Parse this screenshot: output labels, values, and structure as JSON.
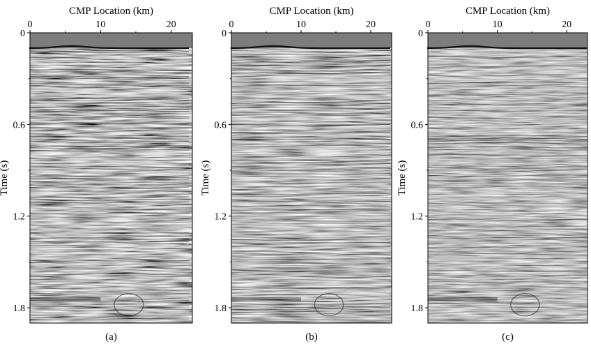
{
  "figure": {
    "panels": [
      {
        "id": "a",
        "caption": "(a)",
        "x_axis_title": "CMP Location (km)",
        "y_axis_title": "Time (s)",
        "x_ticks": [
          "0",
          "10",
          "20"
        ],
        "y_ticks": [
          "0",
          "0.6",
          "1.2",
          "1.8"
        ]
      },
      {
        "id": "b",
        "caption": "(b)",
        "x_axis_title": "CMP Location (km)",
        "y_axis_title": "Time (s)",
        "x_ticks": [
          "0",
          "10",
          "20"
        ],
        "y_ticks": [
          "0",
          "0.6",
          "1.2",
          "1.8"
        ]
      },
      {
        "id": "c",
        "caption": "(c)",
        "x_axis_title": "CMP Location (km)",
        "y_axis_title": "Time (s)",
        "x_ticks": [
          "0",
          "10",
          "20"
        ],
        "y_ticks": [
          "0",
          "0.6",
          "1.2",
          "1.8"
        ]
      }
    ],
    "x_range_km": [
      0,
      23
    ],
    "time_range_s": [
      0,
      1.9
    ],
    "colormap": "grayscale seismic amplitude"
  }
}
